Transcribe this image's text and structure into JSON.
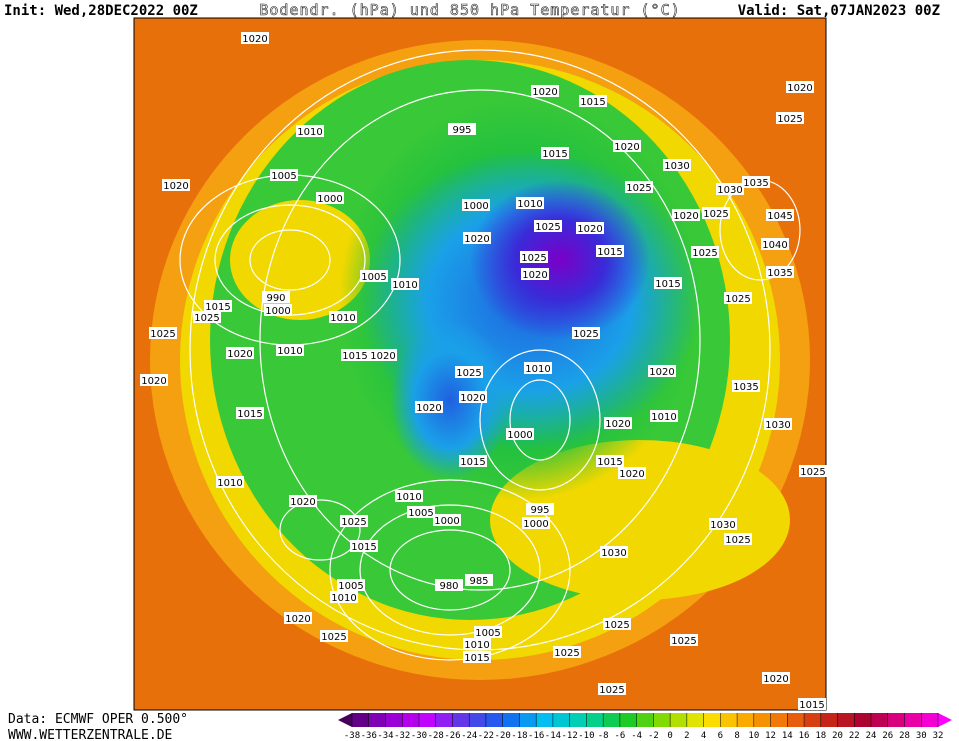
{
  "header": {
    "init": "Init: Wed,28DEC2022 00Z",
    "title": "Bodendr. (hPa) und 850 hPa Temperatur (°C)",
    "valid": "Valid: Sat,07JAN2023 00Z"
  },
  "footer": {
    "source": "Data: ECMWF OPER 0.500°",
    "site": "WWW.WETTERZENTRALE.DE"
  },
  "colorbar": {
    "ticks": [
      -38,
      -36,
      -34,
      -32,
      -30,
      -28,
      -26,
      -24,
      -22,
      -20,
      -18,
      -16,
      -14,
      -12,
      -10,
      -8,
      -6,
      -4,
      -2,
      0,
      2,
      4,
      6,
      8,
      10,
      12,
      14,
      16,
      18,
      20,
      22,
      24,
      26,
      28,
      30,
      32
    ]
  },
  "isobar_labels": [
    "1020",
    "1020",
    "1015",
    "995",
    "1010",
    "1015",
    "1020",
    "1030",
    "1005",
    "1020",
    "1025",
    "1030",
    "1035",
    "1000",
    "1000",
    "1010",
    "1020",
    "1025",
    "1045",
    "1020",
    "1025",
    "1020",
    "1015",
    "1040",
    "1025",
    "1020",
    "1025",
    "1035",
    "1005",
    "1010",
    "1015",
    "990",
    "1015",
    "1000",
    "1025",
    "1010",
    "1025",
    "1025",
    "1025",
    "1010",
    "1015",
    "1020",
    "1020",
    "1010",
    "1025",
    "1020",
    "1020",
    "1035",
    "1020",
    "1020",
    "1015",
    "1010",
    "1020",
    "1030",
    "1000",
    "1015",
    "1015",
    "1020",
    "1010",
    "1025",
    "1010",
    "1020",
    "1005",
    "995",
    "1000",
    "1000",
    "1025",
    "1030",
    "1025",
    "1015",
    "1030",
    "980",
    "985",
    "1005",
    "1010",
    "1020",
    "1025",
    "1025",
    "1005",
    "1010",
    "1015",
    "1025",
    "1025",
    "1025",
    "1020",
    "1015",
    "1020",
    "1025"
  ]
}
